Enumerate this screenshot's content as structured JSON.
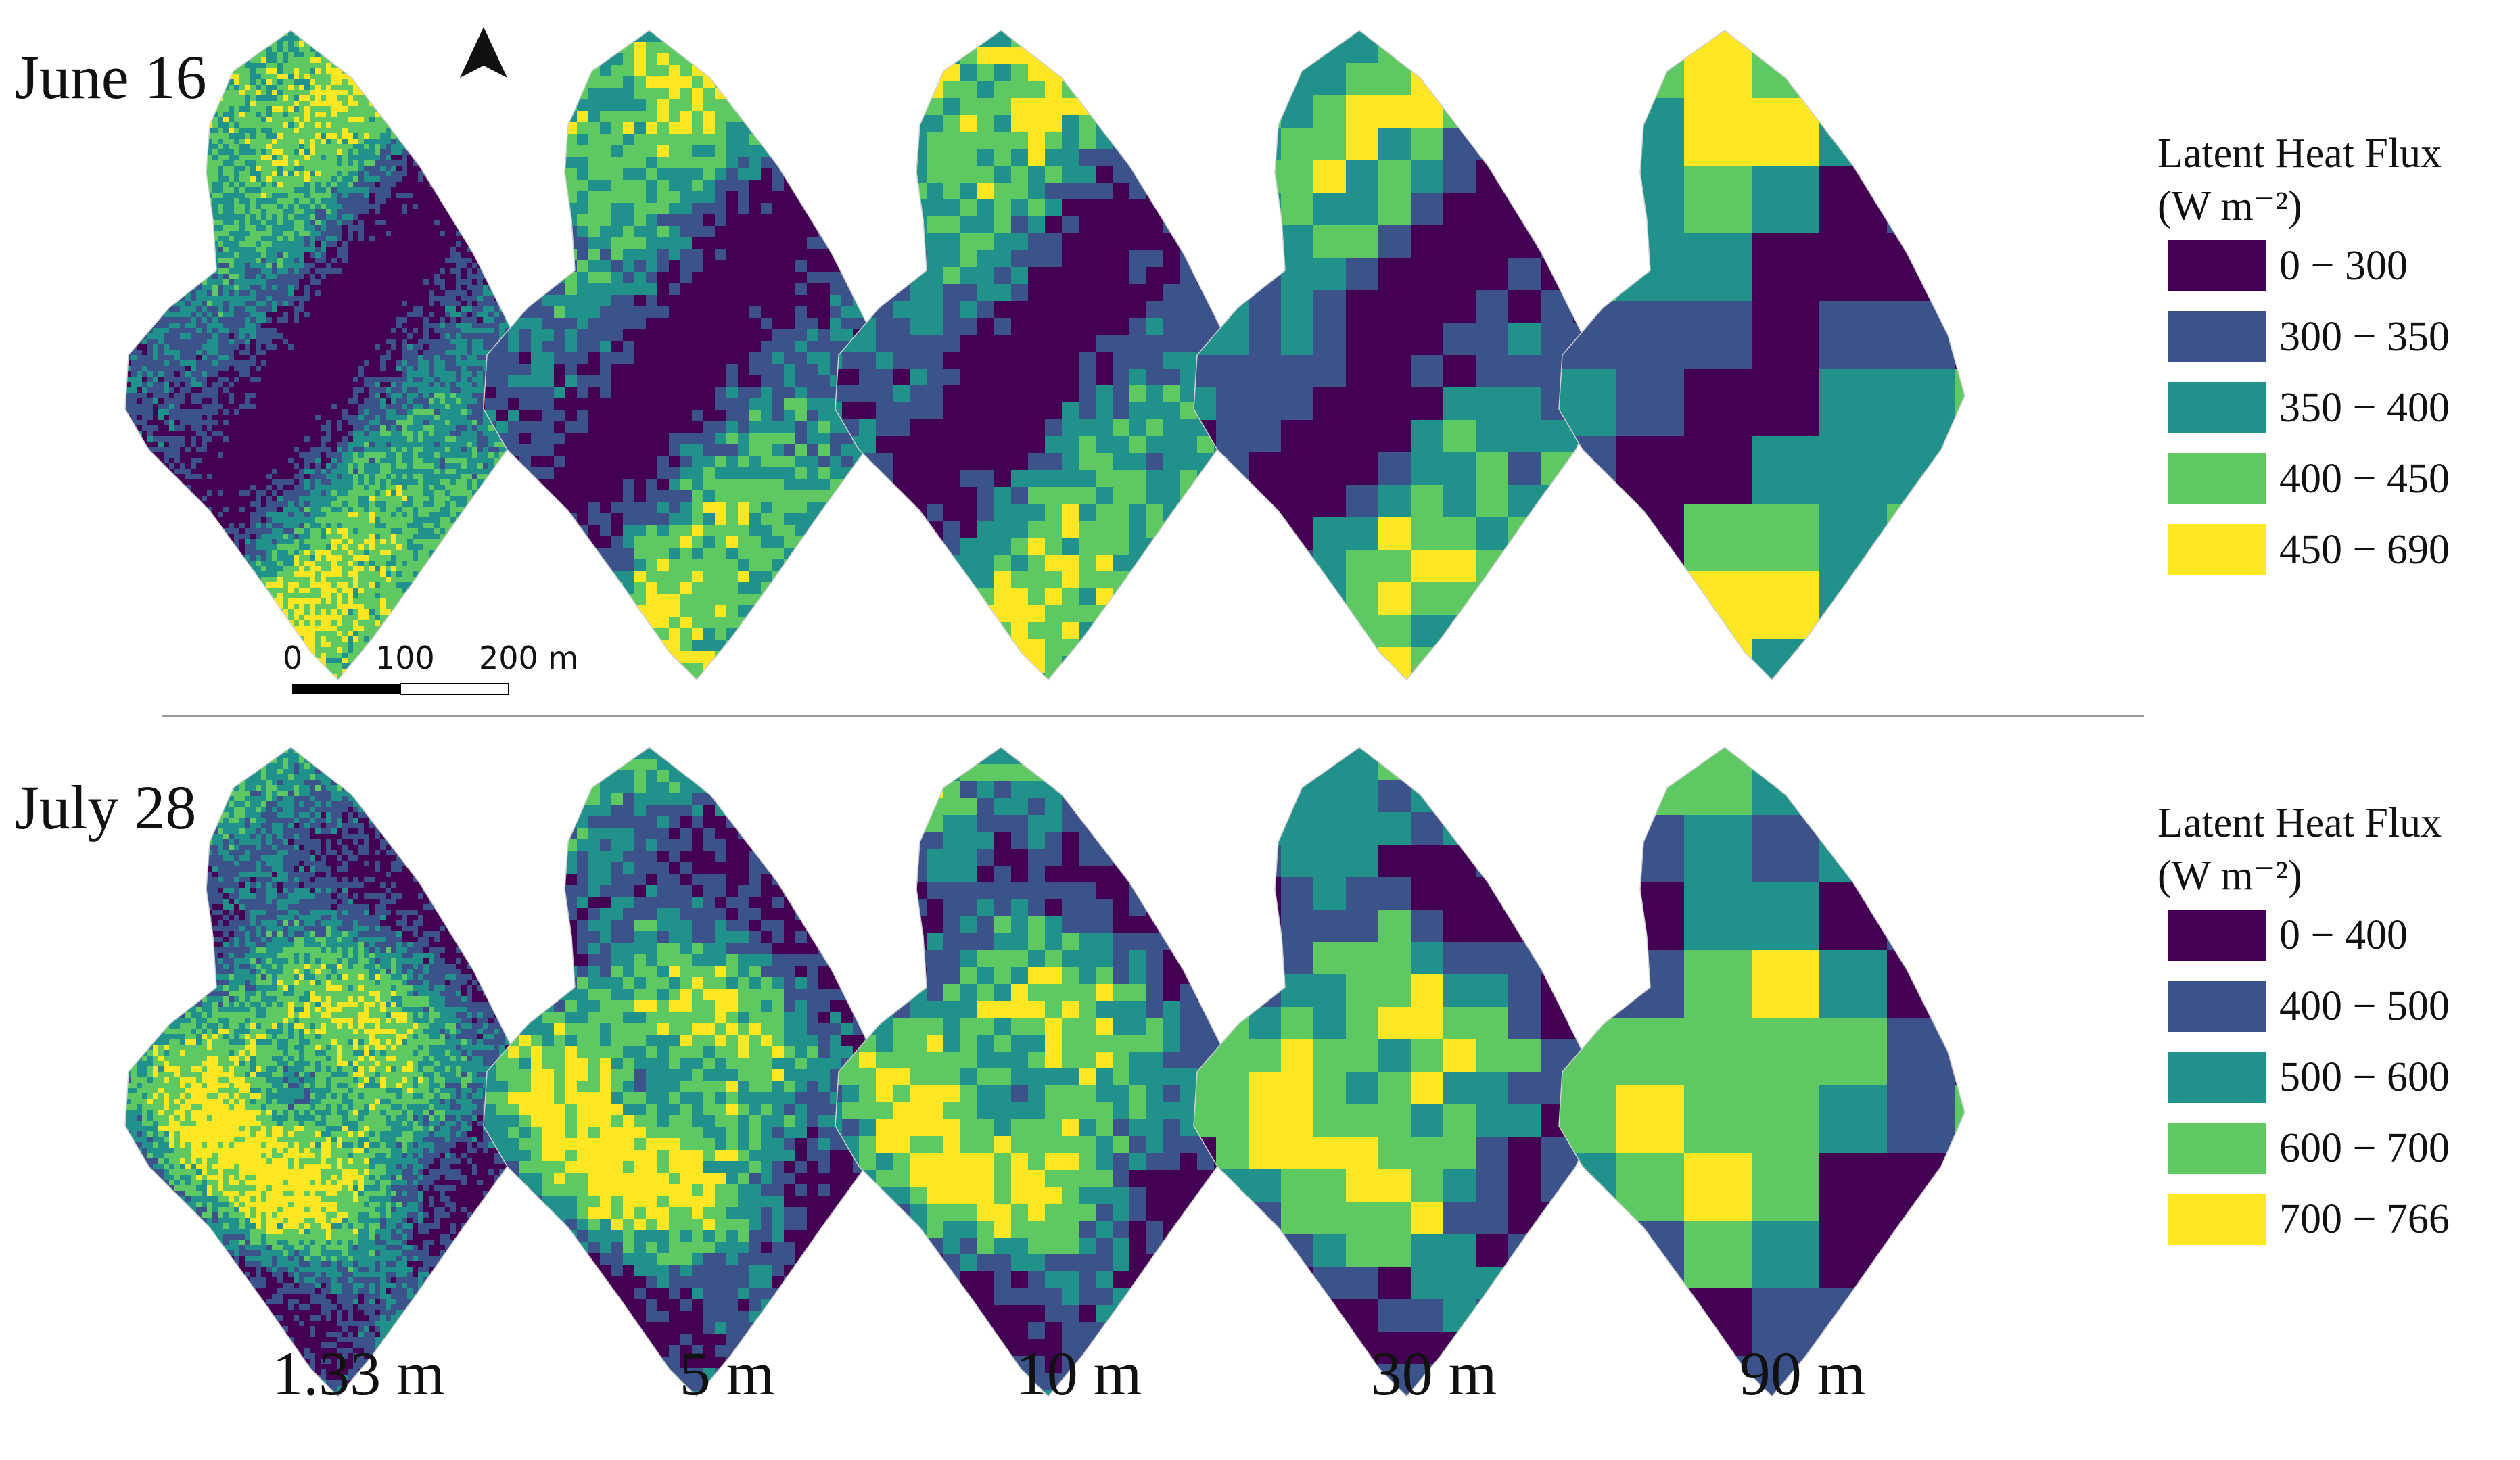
{
  "panels": {
    "rows": [
      {
        "date": "June 16",
        "legend": {
          "title_line1": "Latent Heat Flux",
          "title_line2": "(W m⁻²)",
          "classes": [
            {
              "label": "0 − 300",
              "color": "#440154"
            },
            {
              "label": "300 − 350",
              "color": "#3b528b"
            },
            {
              "label": "350 − 400",
              "color": "#21918c"
            },
            {
              "label": "400 − 450",
              "color": "#5ec962"
            },
            {
              "label": "450 − 690",
              "color": "#fde725"
            }
          ]
        }
      },
      {
        "date": "July 28",
        "legend": {
          "title_line1": "Latent Heat Flux",
          "title_line2": "(W m⁻²)",
          "classes": [
            {
              "label": "0 − 400",
              "color": "#440154"
            },
            {
              "label": "400 − 500",
              "color": "#3b528b"
            },
            {
              "label": "500 − 600",
              "color": "#21918c"
            },
            {
              "label": "600 − 700",
              "color": "#5ec962"
            },
            {
              "label": "700 − 766",
              "color": "#fde725"
            }
          ]
        }
      }
    ],
    "resolutions": [
      "1.33 m",
      "5 m",
      "10 m",
      "30 m",
      "90 m"
    ]
  },
  "scale_bar": {
    "tick_0": "0",
    "tick_100": "100",
    "tick_200": "200 m"
  },
  "north_arrow": {
    "icon": "north-arrow-icon"
  }
}
